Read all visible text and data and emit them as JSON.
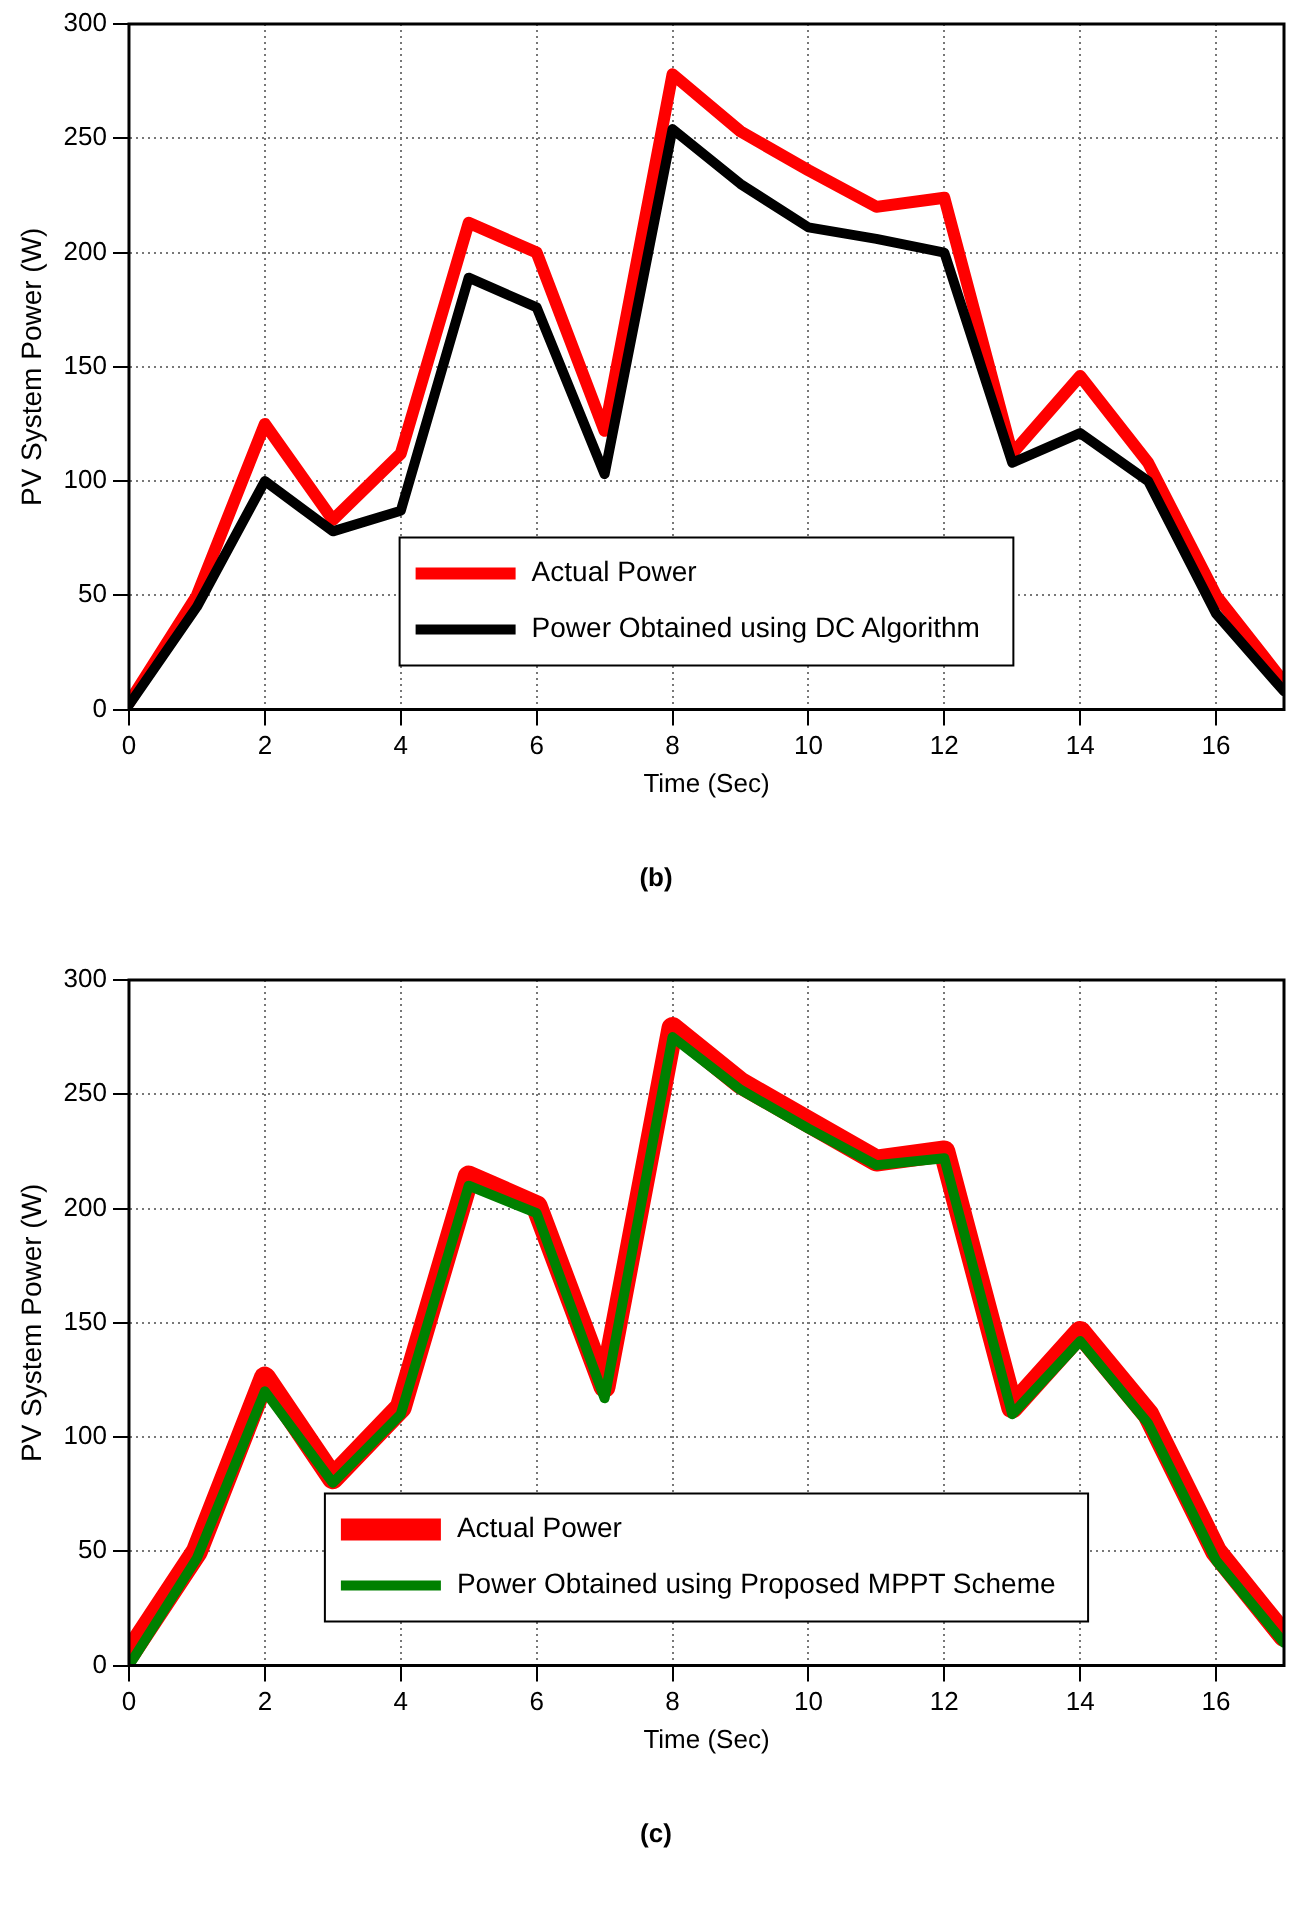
{
  "chart_data": [
    {
      "type": "line",
      "xlabel": "Time (Sec)",
      "ylabel": "PV System Power (W)",
      "x": [
        0,
        1,
        2,
        3,
        4,
        5,
        6,
        7,
        8,
        9,
        10,
        11,
        12,
        13,
        14,
        15,
        16,
        17
      ],
      "series": [
        {
          "name": "Actual Power",
          "color": "#ff0000",
          "values": [
            3,
            50,
            125,
            83,
            112,
            213,
            200,
            122,
            278,
            253,
            236,
            220,
            224,
            112,
            146,
            108,
            50,
            12
          ]
        },
        {
          "name": "Power Obtained using DC Algorithm",
          "color": "#000000",
          "values": [
            2,
            45,
            100,
            78,
            87,
            189,
            176,
            103,
            254,
            230,
            211,
            206,
            200,
            108,
            121,
            100,
            42,
            8
          ]
        }
      ],
      "xlim": [
        0,
        17
      ],
      "xticks": [
        0,
        2,
        4,
        6,
        8,
        10,
        12,
        14,
        16
      ],
      "ylim": [
        0,
        300
      ],
      "yticks": [
        0,
        50,
        100,
        150,
        200,
        250,
        300
      ],
      "grid": true,
      "legend": "bottom",
      "annotations": [
        "(b)"
      ]
    },
    {
      "type": "line",
      "xlabel": "Time (Sec)",
      "ylabel": "PV System Power (W)",
      "x": [
        0,
        1,
        2,
        3,
        4,
        5,
        6,
        7,
        8,
        9,
        10,
        11,
        12,
        13,
        14,
        15,
        16,
        17
      ],
      "series": [
        {
          "name": "Actual Power",
          "color": "#ff0000",
          "values": [
            5,
            50,
            126,
            82,
            113,
            214,
            201,
            122,
            279,
            255,
            238,
            221,
            225,
            113,
            146,
            110,
            50,
            13
          ]
        },
        {
          "name": "Power Obtained using Proposed MPPT Scheme",
          "color": "#008000",
          "values": [
            0,
            47,
            120,
            80,
            110,
            210,
            198,
            117,
            275,
            252,
            235,
            219,
            222,
            110,
            142,
            106,
            46,
            10
          ]
        }
      ],
      "xlim": [
        0,
        17
      ],
      "xticks": [
        0,
        2,
        4,
        6,
        8,
        10,
        12,
        14,
        16
      ],
      "ylim": [
        0,
        300
      ],
      "yticks": [
        0,
        50,
        100,
        150,
        200,
        250,
        300
      ],
      "grid": true,
      "legend": "bottom",
      "annotations": [
        "(c)"
      ]
    }
  ]
}
